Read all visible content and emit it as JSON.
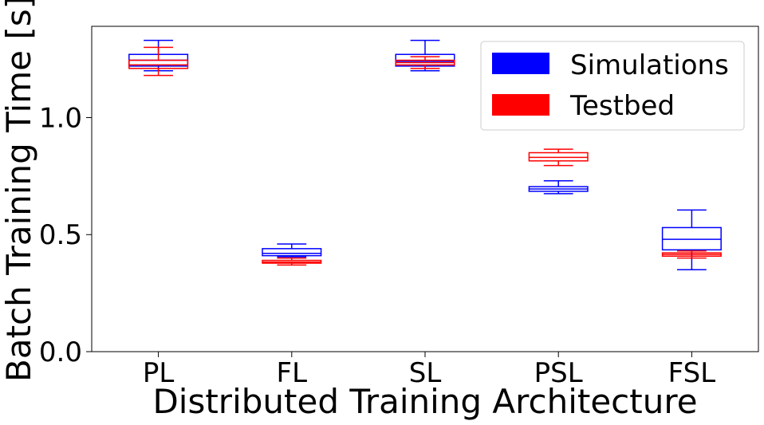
{
  "chart_data": {
    "type": "box",
    "xlabel": "Distributed Training Architecture",
    "ylabel": "Batch Training Time [s]",
    "categories": [
      "PL",
      "FL",
      "SL",
      "PSL",
      "FSL"
    ],
    "ylim": [
      0,
      1.39
    ],
    "yticks": [
      0.0,
      0.5,
      1.0
    ],
    "ytick_labels": [
      "0.0",
      "0.5",
      "1.0"
    ],
    "legend": {
      "position": "top-right"
    },
    "series": [
      {
        "name": "Simulations",
        "color": "#0000ff",
        "boxes": [
          {
            "whisker_low": 1.2,
            "q1": 1.22,
            "median": 1.245,
            "q3": 1.27,
            "whisker_high": 1.33
          },
          {
            "whisker_low": 0.405,
            "q1": 0.41,
            "median": 0.42,
            "q3": 0.44,
            "whisker_high": 0.46
          },
          {
            "whisker_low": 1.2,
            "q1": 1.22,
            "median": 1.24,
            "q3": 1.27,
            "whisker_high": 1.33
          },
          {
            "whisker_low": 0.675,
            "q1": 0.685,
            "median": 0.695,
            "q3": 0.705,
            "whisker_high": 0.73
          },
          {
            "whisker_low": 0.35,
            "q1": 0.435,
            "median": 0.48,
            "q3": 0.53,
            "whisker_high": 0.605
          }
        ]
      },
      {
        "name": "Testbed",
        "color": "#ff0000",
        "boxes": [
          {
            "whisker_low": 1.18,
            "q1": 1.21,
            "median": 1.225,
            "q3": 1.245,
            "whisker_high": 1.3
          },
          {
            "whisker_low": 0.37,
            "q1": 0.378,
            "median": 0.383,
            "q3": 0.39,
            "whisker_high": 0.4
          },
          {
            "whisker_low": 1.21,
            "q1": 1.225,
            "median": 1.235,
            "q3": 1.245,
            "whisker_high": 1.26
          },
          {
            "whisker_low": 0.795,
            "q1": 0.815,
            "median": 0.83,
            "q3": 0.85,
            "whisker_high": 0.865
          },
          {
            "whisker_low": 0.4,
            "q1": 0.408,
            "median": 0.415,
            "q3": 0.422,
            "whisker_high": 0.43
          }
        ]
      }
    ]
  }
}
